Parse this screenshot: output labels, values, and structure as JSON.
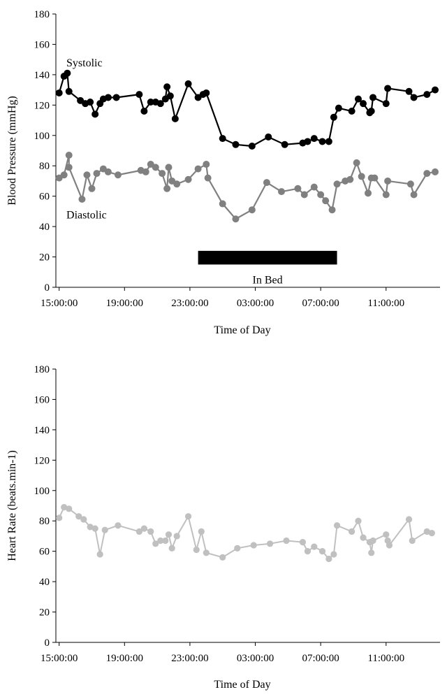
{
  "chart_data": [
    {
      "type": "line",
      "ylabel": "Blood Pressure (mmHg)",
      "xlabel": "Time of Day",
      "yticks": [
        "0",
        "20",
        "40",
        "60",
        "80",
        "100",
        "120",
        "140",
        "160",
        "180"
      ],
      "xticks": [
        "15:00:00",
        "19:00:00",
        "23:00:00",
        "03:00:00",
        "07:00:00",
        "11:00:00"
      ],
      "ylim": [
        0,
        180
      ],
      "x_units": "hours since 15:00",
      "xlim": [
        -0.2,
        23.3
      ],
      "xtick_values": [
        0,
        4,
        8,
        12,
        16,
        20
      ],
      "grid": false,
      "annotations": {
        "in_bed": {
          "label": "In Bed",
          "x_start": 8.5,
          "x_end": 17.0,
          "y_low": 15,
          "y_high": 24
        }
      },
      "series": [
        {
          "name": "Systolic",
          "color": "#000000",
          "label_at": {
            "x": 0.1,
            "y": 150
          },
          "x": [
            0.0,
            0.3,
            0.5,
            0.6,
            1.3,
            1.6,
            1.9,
            2.2,
            2.5,
            2.7,
            3.0,
            3.5,
            4.9,
            5.2,
            5.6,
            5.9,
            6.2,
            6.5,
            6.6,
            6.8,
            7.1,
            7.9,
            8.5,
            8.8,
            9.0,
            10.0,
            10.8,
            11.8,
            12.8,
            13.8,
            14.9,
            15.2,
            15.6,
            16.1,
            16.5,
            16.8,
            17.1,
            17.9,
            18.3,
            18.6,
            19.0,
            19.1,
            19.2,
            20.0,
            20.1,
            21.4,
            21.7,
            22.5,
            23.0
          ],
          "y": [
            128,
            139,
            141,
            129,
            123,
            121,
            122,
            114,
            121,
            124,
            125,
            125,
            127,
            116,
            122,
            122,
            121,
            124,
            132,
            126,
            111,
            134,
            125,
            127,
            128,
            98,
            94,
            93,
            99,
            94,
            95,
            96,
            98,
            96,
            96,
            112,
            118,
            116,
            124,
            121,
            115,
            116,
            125,
            121,
            131,
            129,
            125,
            127,
            130
          ]
        },
        {
          "name": "Diastolic",
          "color": "#808080",
          "label_at": {
            "x": 0.1,
            "y": 50
          },
          "x": [
            0.0,
            0.3,
            0.6,
            0.6,
            1.4,
            1.7,
            2.0,
            2.3,
            2.7,
            3.0,
            3.6,
            5.0,
            5.3,
            5.6,
            5.9,
            6.3,
            6.6,
            6.7,
            6.9,
            7.2,
            7.9,
            8.5,
            9.0,
            9.1,
            10.0,
            10.8,
            11.8,
            12.7,
            13.6,
            14.6,
            15.0,
            15.6,
            16.0,
            16.3,
            16.7,
            17.0,
            17.5,
            17.8,
            18.2,
            18.5,
            18.9,
            19.1,
            19.3,
            20.0,
            20.1,
            21.5,
            21.7,
            22.5,
            23.0
          ],
          "y": [
            72,
            74,
            87,
            79,
            58,
            74,
            65,
            75,
            78,
            76,
            74,
            77,
            76,
            81,
            79,
            75,
            65,
            79,
            70,
            68,
            71,
            78,
            81,
            72,
            55,
            45,
            51,
            69,
            63,
            65,
            61,
            66,
            61,
            57,
            51,
            68,
            70,
            71,
            82,
            73,
            62,
            72,
            72,
            61,
            70,
            68,
            61,
            75,
            76
          ]
        }
      ]
    },
    {
      "type": "line",
      "ylabel": "Heart Rate (beats.min-1)",
      "xlabel": "Time of Day",
      "yticks": [
        "0",
        "20",
        "40",
        "60",
        "80",
        "100",
        "120",
        "140",
        "160",
        "180"
      ],
      "xticks": [
        "15:00:00",
        "19:00:00",
        "23:00:00",
        "03:00:00",
        "07:00:00",
        "11:00:00"
      ],
      "ylim": [
        0,
        180
      ],
      "x_units": "hours since 15:00",
      "xlim": [
        -0.2,
        23.3
      ],
      "xtick_values": [
        0,
        4,
        8,
        12,
        16,
        20
      ],
      "grid": false,
      "series": [
        {
          "name": "Heart Rate",
          "color": "#c0c0c0",
          "x": [
            0.0,
            0.3,
            0.6,
            1.2,
            1.5,
            1.9,
            2.2,
            2.5,
            2.8,
            3.6,
            4.9,
            5.2,
            5.6,
            5.9,
            6.2,
            6.5,
            6.7,
            6.9,
            7.2,
            7.9,
            8.4,
            8.7,
            9.0,
            10.0,
            10.9,
            11.9,
            12.9,
            13.9,
            14.9,
            15.2,
            15.6,
            16.1,
            16.5,
            16.8,
            17.0,
            17.9,
            18.3,
            18.6,
            19.0,
            19.1,
            19.2,
            20.0,
            20.1,
            20.2,
            21.4,
            21.6,
            22.5,
            22.8
          ],
          "y": [
            82,
            89,
            88,
            83,
            81,
            76,
            75,
            58,
            74,
            77,
            73,
            75,
            73,
            65,
            67,
            67,
            71,
            62,
            70,
            83,
            61,
            73,
            59,
            56,
            62,
            64,
            65,
            67,
            66,
            60,
            63,
            60,
            55,
            58,
            77,
            73,
            80,
            69,
            66,
            59,
            67,
            71,
            67,
            64,
            81,
            67,
            73,
            72
          ]
        }
      ]
    }
  ]
}
